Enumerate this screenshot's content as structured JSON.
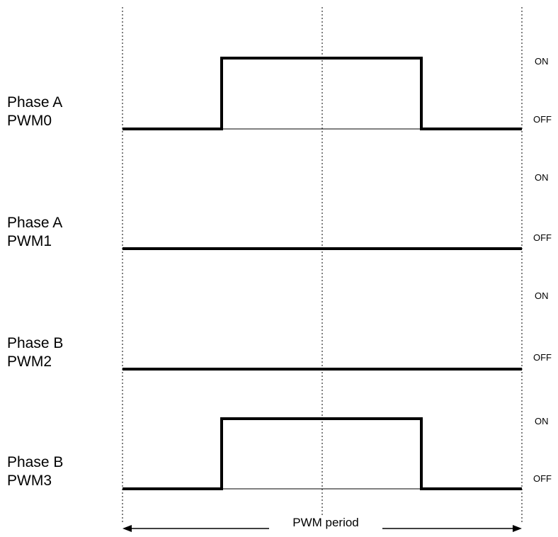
{
  "diagram": {
    "channels": [
      {
        "line1": "Phase A",
        "line2": "PWM0",
        "pulse": true,
        "on_label": "ON",
        "off_label": "OFF"
      },
      {
        "line1": "Phase A",
        "line2": "PWM1",
        "pulse": false,
        "on_label": "ON",
        "off_label": "OFF"
      },
      {
        "line1": "Phase B",
        "line2": "PWM2",
        "pulse": false,
        "on_label": "ON",
        "off_label": "OFF"
      },
      {
        "line1": "Phase B",
        "line2": "PWM3",
        "pulse": true,
        "on_label": "ON",
        "off_label": "OFF"
      }
    ],
    "period_label": "PWM period",
    "pulse_start_fraction": 0.25,
    "pulse_end_fraction": 0.75,
    "colors": {
      "line": "#000000",
      "background": "#ffffff"
    }
  }
}
